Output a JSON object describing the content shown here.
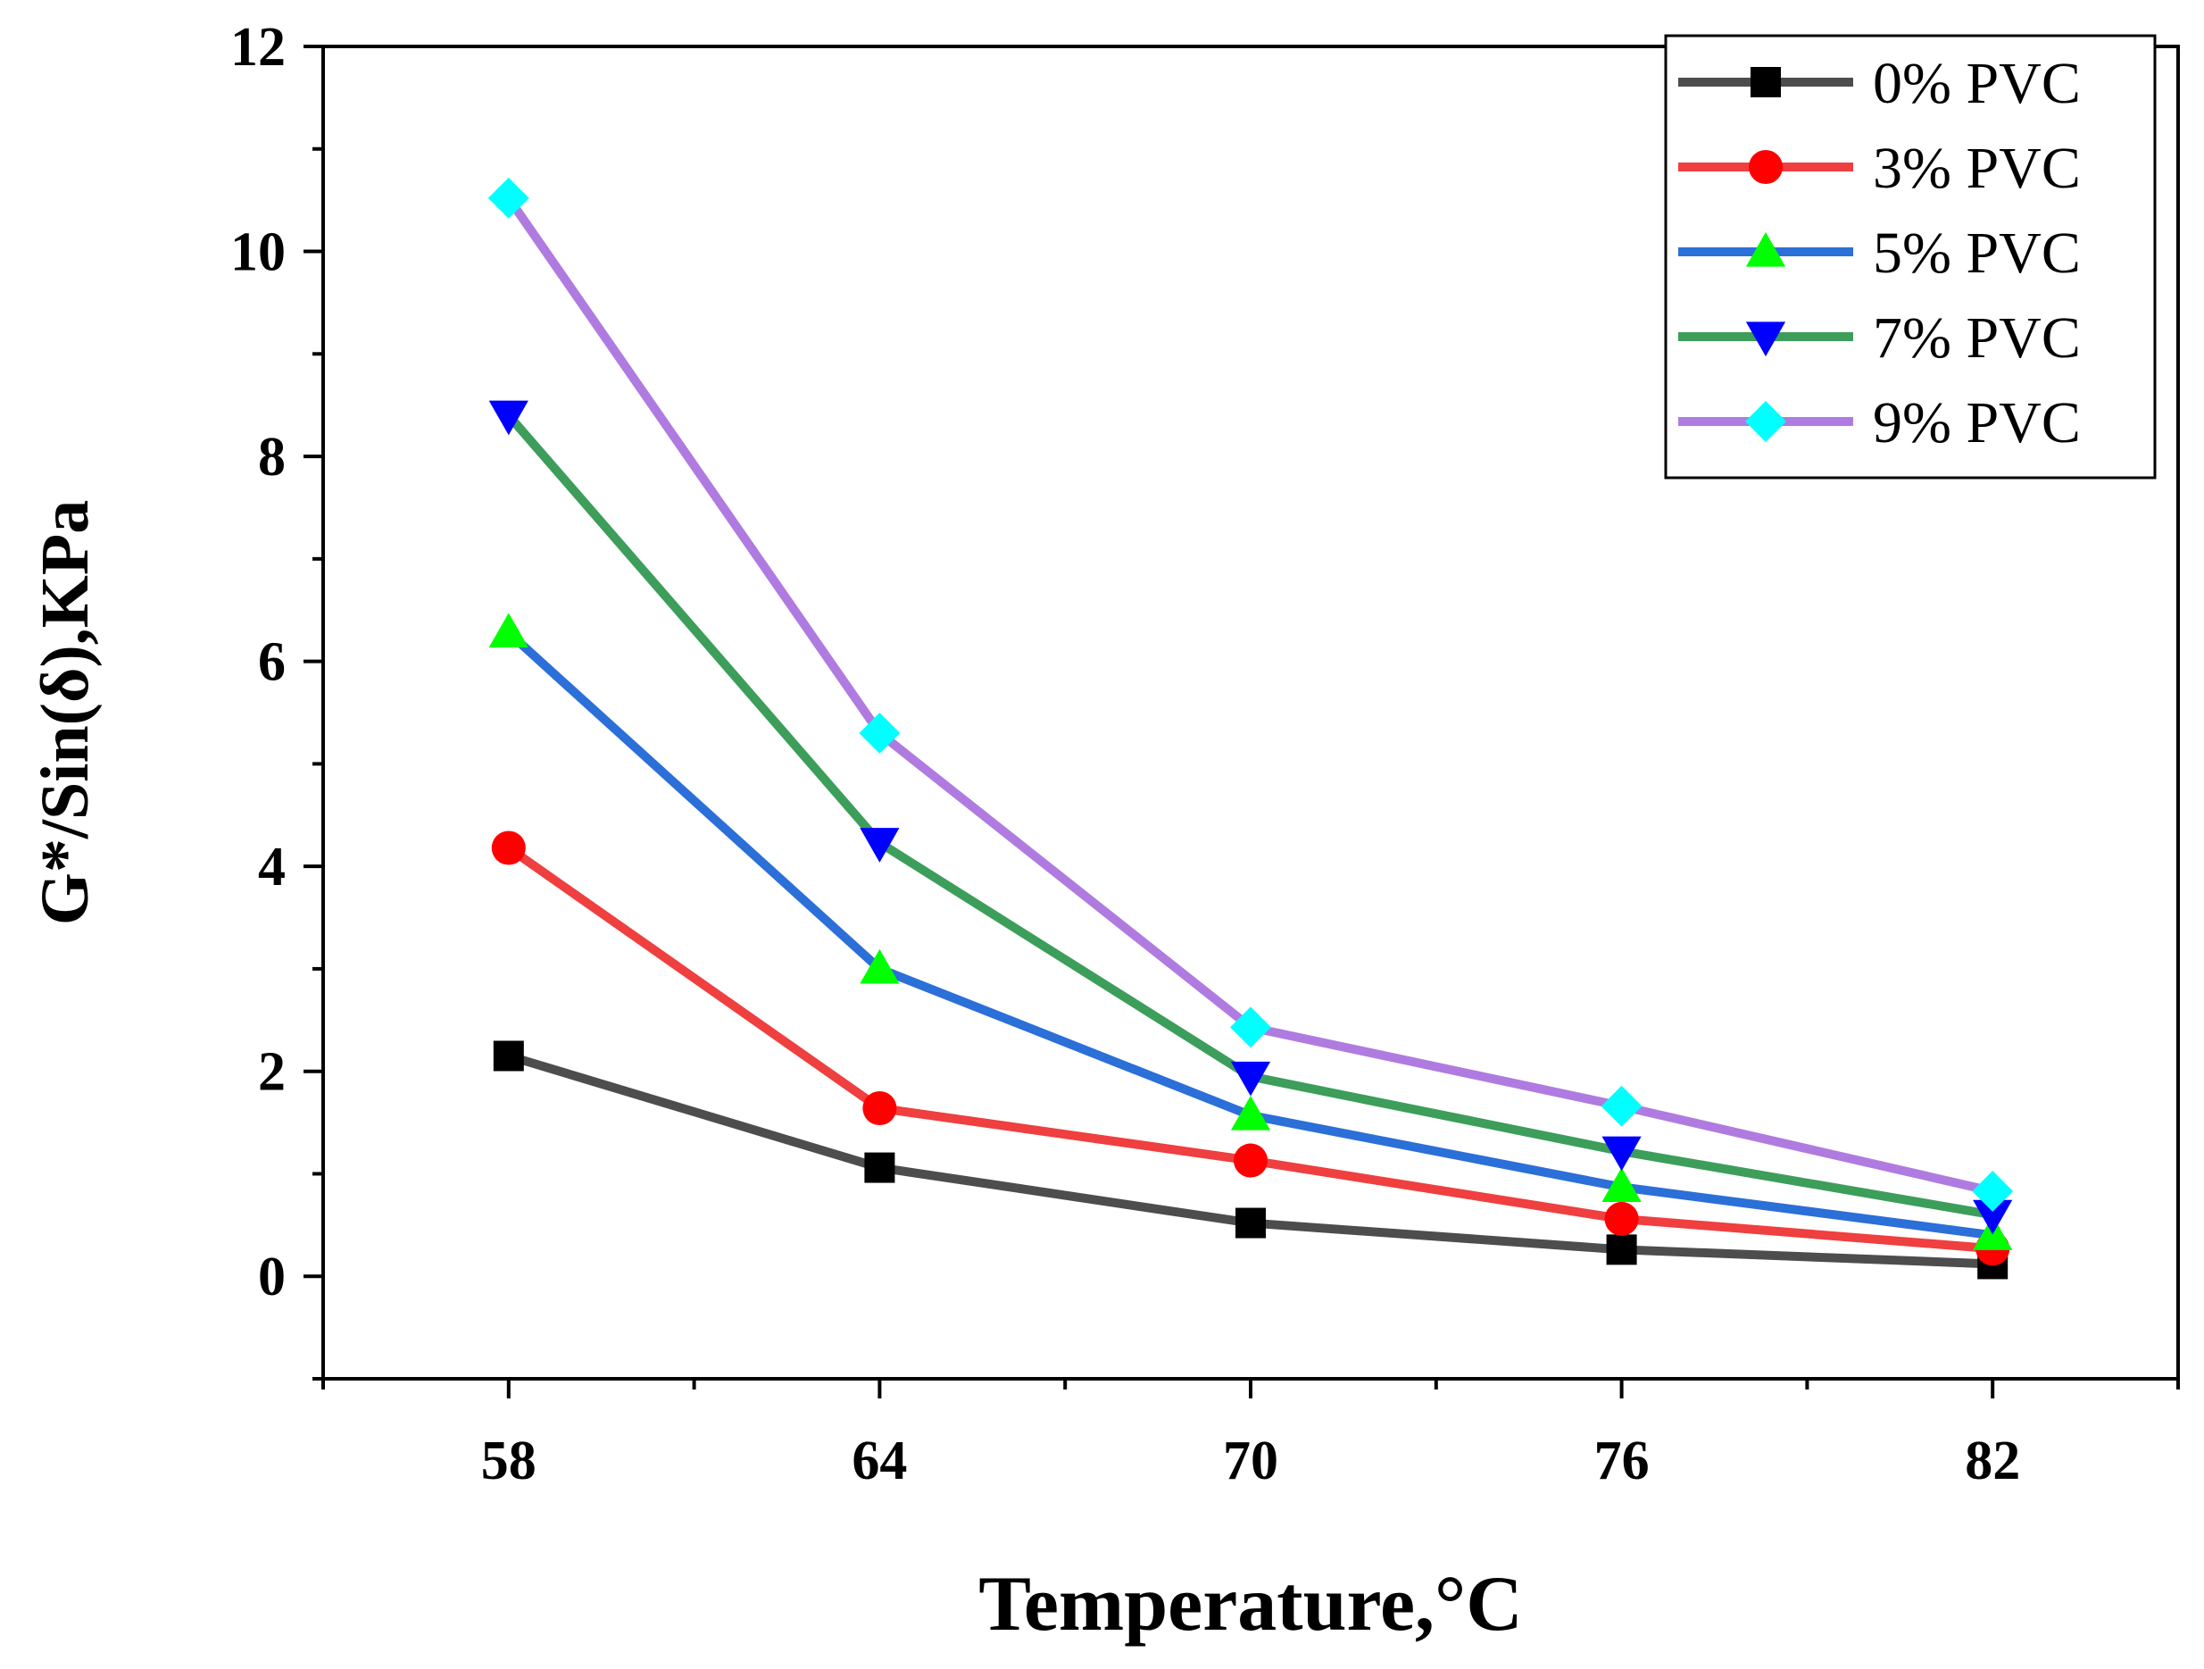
{
  "chart_data": {
    "type": "line",
    "title": "",
    "xlabel": "Temperature,°C",
    "ylabel": "G*/Sin(δ),KPa",
    "x": [
      58,
      64,
      70,
      76,
      82
    ],
    "x_tick_labels": [
      "58",
      "64",
      "70",
      "76",
      "82"
    ],
    "xlim": [
      55,
      85
    ],
    "y_ticks": [
      0,
      2,
      4,
      6,
      8,
      10,
      12
    ],
    "y_tick_labels": [
      "0",
      "2",
      "4",
      "6",
      "8",
      "10",
      "12"
    ],
    "ylim": [
      -1,
      12
    ],
    "grid": false,
    "legend_position": "top-right",
    "series": [
      {
        "name": "0% PVC",
        "values": [
          2.15,
          1.06,
          0.52,
          0.26,
          0.12
        ],
        "line_color": "#4d4d4d",
        "marker_color": "#000000",
        "marker": "square"
      },
      {
        "name": "3% PVC",
        "values": [
          4.18,
          1.64,
          1.13,
          0.56,
          0.27
        ],
        "line_color": "#ef3f3f",
        "marker_color": "#ff0000",
        "marker": "circle"
      },
      {
        "name": "5% PVC",
        "values": [
          6.28,
          3.0,
          1.57,
          0.87,
          0.4
        ],
        "line_color": "#2b6fd8",
        "marker_color": "#00ff00",
        "marker": "triangle-up"
      },
      {
        "name": "7% PVC",
        "values": [
          8.4,
          4.23,
          1.95,
          1.22,
          0.6
        ],
        "line_color": "#3c9e5a",
        "marker_color": "#0000ff",
        "marker": "triangle-down"
      },
      {
        "name": "9% PVC",
        "values": [
          10.52,
          5.3,
          2.43,
          1.66,
          0.83
        ],
        "line_color": "#b07be0",
        "marker_color": "#00ffff",
        "marker": "diamond"
      }
    ]
  }
}
